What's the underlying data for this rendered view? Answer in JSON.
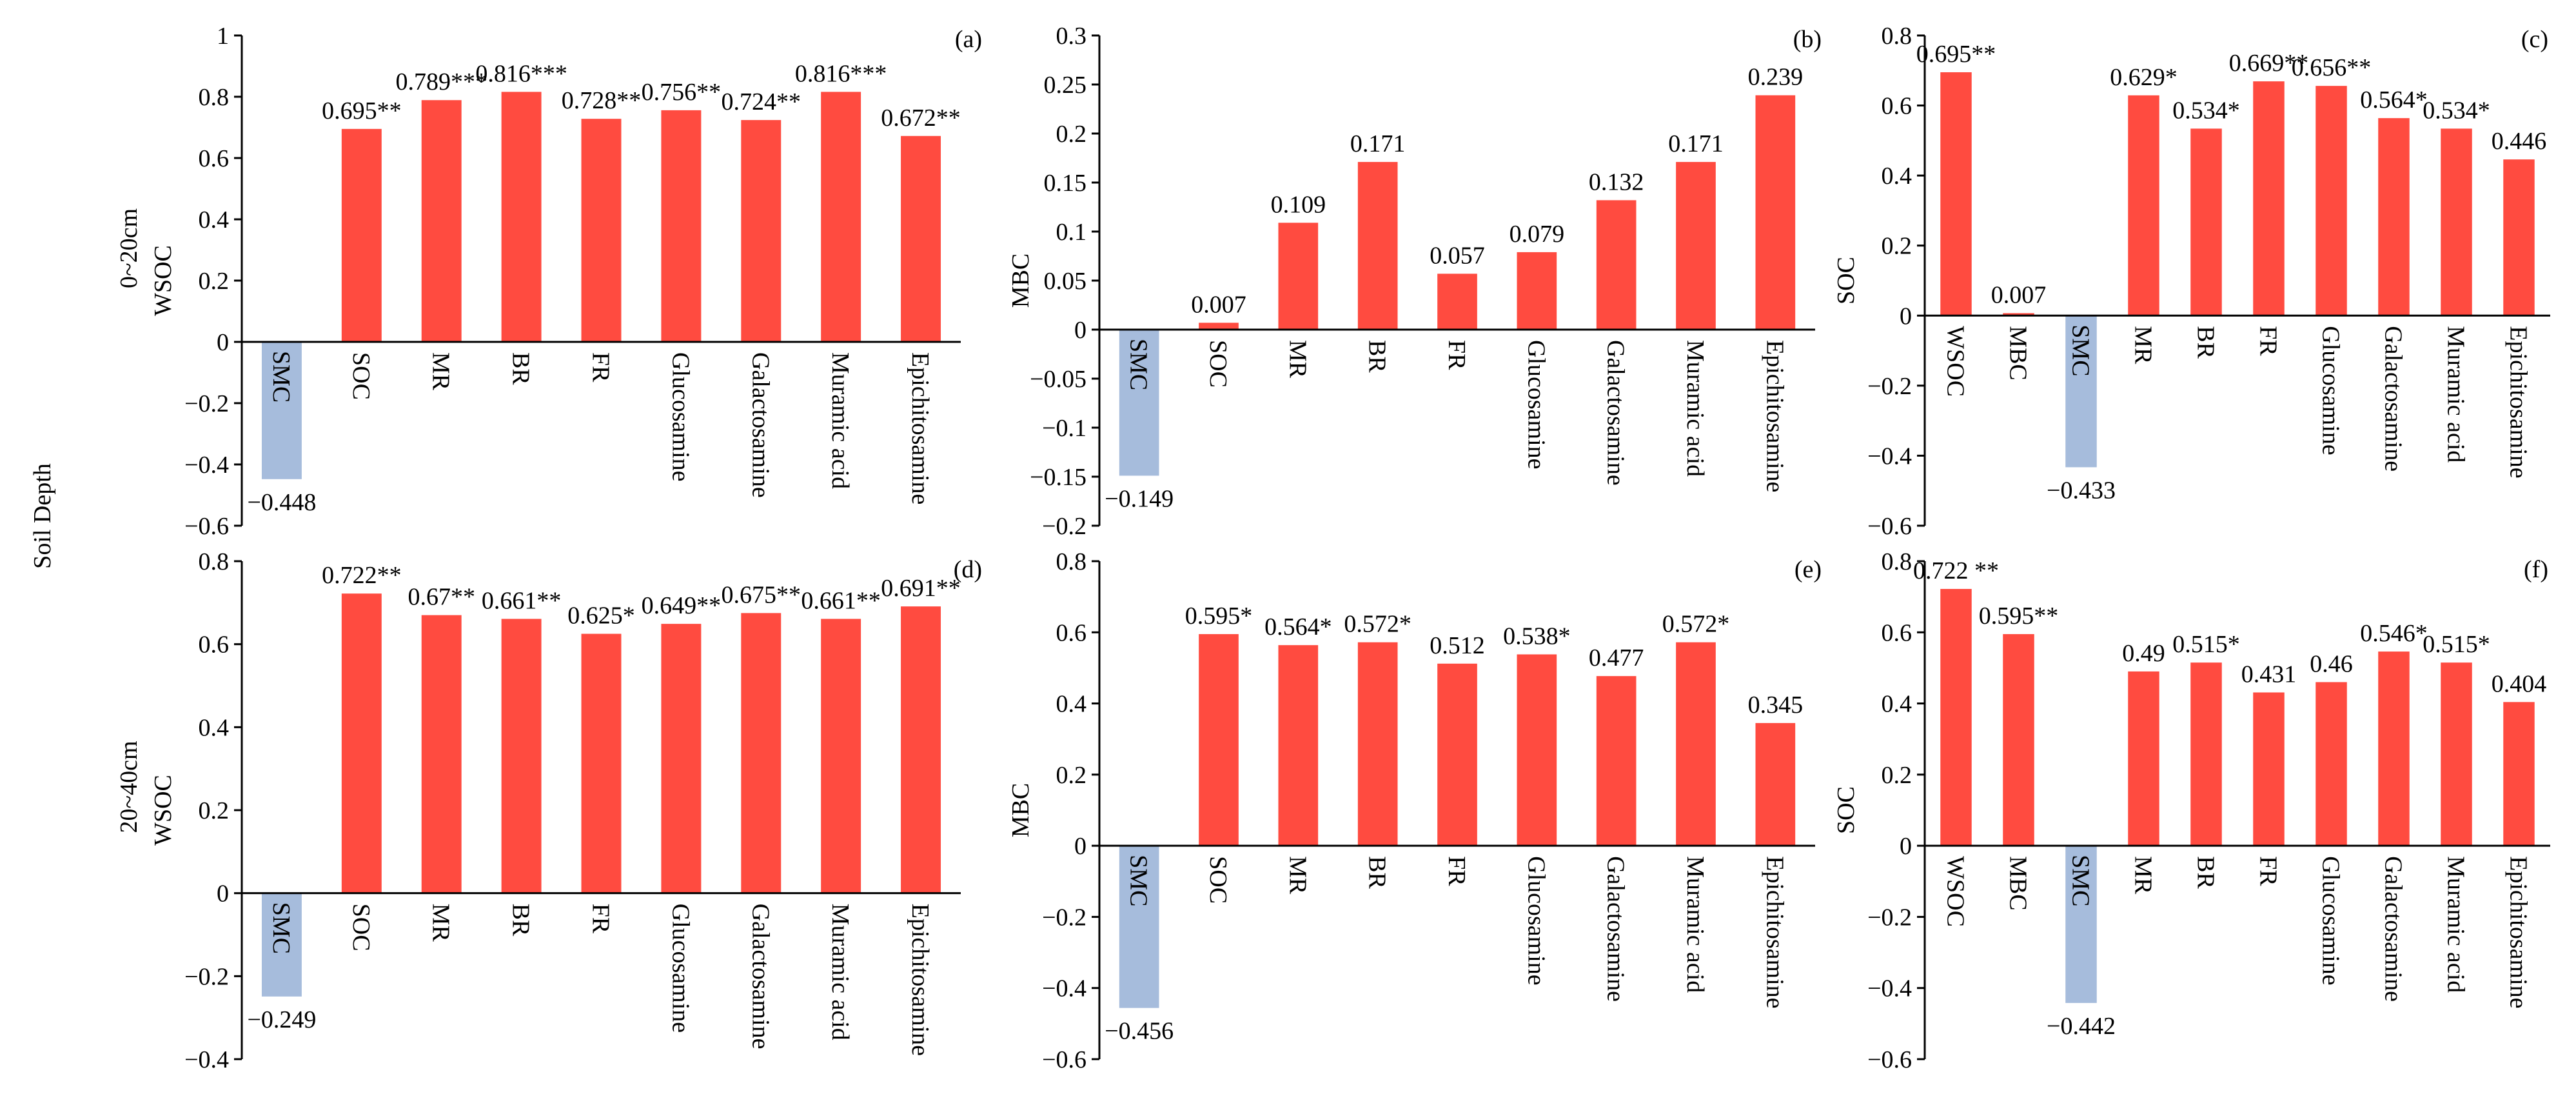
{
  "figure": {
    "row_labels": [
      "0~20cm",
      "20~40cm"
    ],
    "side_label": "Soil Depth"
  },
  "colors": {
    "positive": "#ff4b40",
    "negative": "#a6bcdc"
  },
  "chart_data": [
    {
      "type": "bar",
      "panel": "(a)",
      "ylabel": "WSOC",
      "ylim": [
        -0.6,
        1
      ],
      "yticks": [
        -0.6,
        -0.4,
        -0.2,
        0,
        0.2,
        0.4,
        0.6,
        0.8,
        1
      ],
      "yticklabels": [
        "−0.6",
        "−0.4",
        "−0.2",
        "0",
        "0.2",
        "0.4",
        "0.6",
        "0.8",
        "1"
      ],
      "categories": [
        "SMC",
        "SOC",
        "MR",
        "BR",
        "FR",
        "Glucosamine",
        "Galactosamine",
        "Muramic acid",
        "Epichitosamine"
      ],
      "values": [
        -0.448,
        0.695,
        0.789,
        0.816,
        0.728,
        0.756,
        0.724,
        0.816,
        0.672
      ],
      "labels": [
        "−0.448",
        "0.695**",
        "0.789***",
        "0.816***",
        "0.728**",
        "0.756**",
        "0.724**",
        "0.816***",
        "0.672**"
      ]
    },
    {
      "type": "bar",
      "panel": "(b)",
      "ylabel": "MBC",
      "ylim": [
        -0.2,
        0.3
      ],
      "yticks": [
        -0.2,
        -0.15,
        -0.1,
        -0.05,
        0,
        0.05,
        0.1,
        0.15,
        0.2,
        0.25,
        0.3
      ],
      "yticklabels": [
        "−0.2",
        "−0.15",
        "−0.1",
        "−0.05",
        "0",
        "0.05",
        "0.1",
        "0.15",
        "0.2",
        "0.25",
        "0.3"
      ],
      "categories": [
        "SMC",
        "SOC",
        "MR",
        "BR",
        "FR",
        "Glucosamine",
        "Galactosamine",
        "Muramic acid",
        "Epichitosamine"
      ],
      "values": [
        -0.149,
        0.007,
        0.109,
        0.171,
        0.057,
        0.079,
        0.132,
        0.171,
        0.239
      ],
      "labels": [
        "−0.149",
        "0.007",
        "0.109",
        "0.171",
        "0.057",
        "0.079",
        "0.132",
        "0.171",
        "0.239"
      ]
    },
    {
      "type": "bar",
      "panel": "(c)",
      "ylabel": "SOC",
      "ylim": [
        -0.6,
        0.8
      ],
      "yticks": [
        -0.6,
        -0.4,
        -0.2,
        0,
        0.2,
        0.4,
        0.6,
        0.8
      ],
      "yticklabels": [
        "−0.6",
        "−0.4",
        "−0.2",
        "0",
        "0.2",
        "0.4",
        "0.6",
        "0.8"
      ],
      "categories": [
        "WSOC",
        "MBC",
        "SMC",
        "MR",
        "BR",
        "FR",
        "Glucosamine",
        "Galactosamine",
        "Muramic acid",
        "Epichitosamine"
      ],
      "values": [
        0.695,
        0.007,
        -0.433,
        0.629,
        0.534,
        0.669,
        0.656,
        0.564,
        0.534,
        0.446
      ],
      "labels": [
        "0.695**",
        "0.007",
        "−0.433",
        "0.629*",
        "0.534*",
        "0.669**",
        "0.656**",
        "0.564*",
        "0.534*",
        "0.446"
      ]
    },
    {
      "type": "bar",
      "panel": "(d)",
      "ylabel": "WSOC",
      "ylim": [
        -0.4,
        0.8
      ],
      "yticks": [
        -0.4,
        -0.2,
        0,
        0.2,
        0.4,
        0.6,
        0.8
      ],
      "yticklabels": [
        "−0.4",
        "−0.2",
        "0",
        "0.2",
        "0.4",
        "0.6",
        "0.8"
      ],
      "categories": [
        "SMC",
        "SOC",
        "MR",
        "BR",
        "FR",
        "Glucosamine",
        "Galactosamine",
        "Muramic acid",
        "Epichitosamine"
      ],
      "values": [
        -0.249,
        0.722,
        0.67,
        0.661,
        0.625,
        0.649,
        0.675,
        0.661,
        0.691
      ],
      "labels": [
        "−0.249",
        "0.722**",
        "0.67**",
        "0.661**",
        "0.625*",
        "0.649**",
        "0.675**",
        "0.661**",
        "0.691**"
      ]
    },
    {
      "type": "bar",
      "panel": "(e)",
      "ylabel": "MBC",
      "ylim": [
        -0.6,
        0.8
      ],
      "yticks": [
        -0.6,
        -0.4,
        -0.2,
        0,
        0.2,
        0.4,
        0.6,
        0.8
      ],
      "yticklabels": [
        "−0.6",
        "−0.4",
        "−0.2",
        "0",
        "0.2",
        "0.4",
        "0.6",
        "0.8"
      ],
      "categories": [
        "SMC",
        "SOC",
        "MR",
        "BR",
        "FR",
        "Glucosamine",
        "Galactosamine",
        "Muramic acid",
        "Epichitosamine"
      ],
      "values": [
        -0.456,
        0.595,
        0.564,
        0.572,
        0.512,
        0.538,
        0.477,
        0.572,
        0.345
      ],
      "labels": [
        "−0.456",
        "0.595*",
        "0.564*",
        "0.572*",
        "0.512",
        "0.538*",
        "0.477",
        "0.572*",
        "0.345"
      ]
    },
    {
      "type": "bar",
      "panel": "(f)",
      "ylabel": "SOC",
      "ylim": [
        -0.6,
        0.8
      ],
      "yticks": [
        -0.6,
        -0.4,
        -0.2,
        0,
        0.2,
        0.4,
        0.6,
        0.8
      ],
      "yticklabels": [
        "−0.6",
        "−0.4",
        "−0.2",
        "0",
        "0.2",
        "0.4",
        "0.6",
        "0.8"
      ],
      "categories": [
        "WSOC",
        "MBC",
        "SMC",
        "MR",
        "BR",
        "FR",
        "Glucosamine",
        "Galactosamine",
        "Muramic acid",
        "Epichitosamine"
      ],
      "values": [
        0.722,
        0.595,
        -0.442,
        0.49,
        0.515,
        0.431,
        0.46,
        0.546,
        0.515,
        0.404
      ],
      "labels": [
        "0.722 **",
        "0.595**",
        "−0.442",
        "0.49",
        "0.515*",
        "0.431",
        "0.46",
        "0.546*",
        "0.515*",
        "0.404"
      ]
    }
  ]
}
